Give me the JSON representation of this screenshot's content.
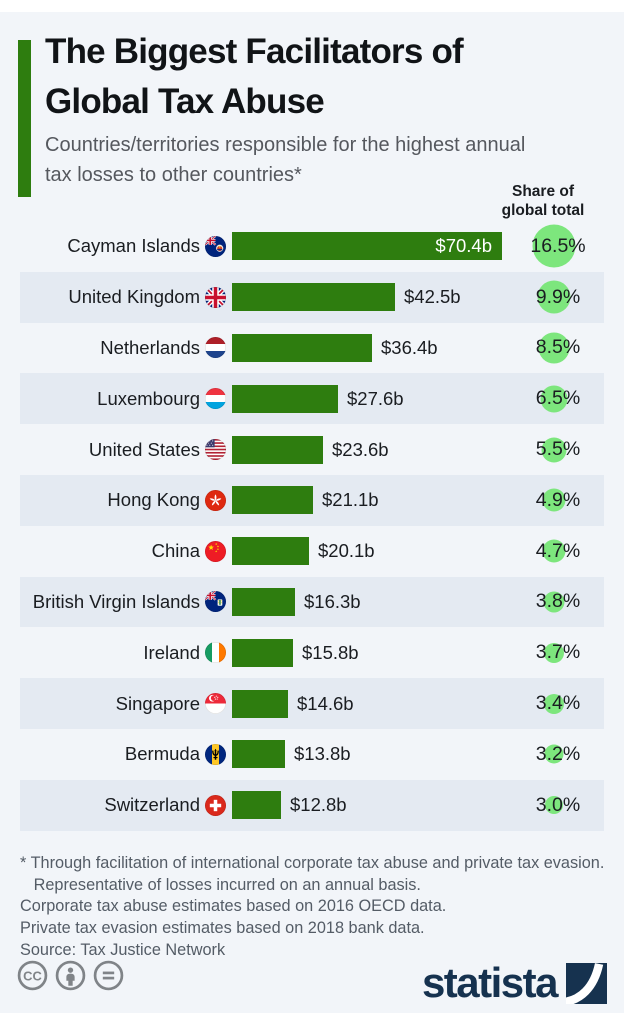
{
  "header": {
    "title": "The Biggest Facilitators of\nGlobal Tax Abuse",
    "subtitle": "Countries/territories responsible for the highest annual\ntax losses to other countries*",
    "share_column": "Share of\nglobal total"
  },
  "chart_data": {
    "type": "bar",
    "orientation": "horizontal",
    "title": "The Biggest Facilitators of Global Tax Abuse",
    "subtitle": "Countries/territories responsible for the highest annual tax losses to other countries*",
    "unit": "billions of US dollars (annual tax losses caused to other countries)",
    "categories": [
      "Cayman Islands",
      "United Kingdom",
      "Netherlands",
      "Luxembourg",
      "United States",
      "Hong Kong",
      "China",
      "British Virgin Islands",
      "Ireland",
      "Singapore",
      "Bermuda",
      "Switzerland"
    ],
    "series": [
      {
        "name": "Annual tax losses to other countries ($b)",
        "values": [
          70.4,
          42.5,
          36.4,
          27.6,
          23.6,
          21.1,
          20.1,
          16.3,
          15.8,
          14.6,
          13.8,
          12.8
        ],
        "labels": [
          "$70.4b",
          "$42.5b",
          "$36.4b",
          "$27.6b",
          "$23.6b",
          "$21.1b",
          "$20.1b",
          "$16.3b",
          "$15.8b",
          "$14.6b",
          "$13.8b",
          "$12.8b"
        ]
      },
      {
        "name": "Share of global total (%)",
        "values": [
          16.5,
          9.9,
          8.5,
          6.5,
          5.5,
          4.9,
          4.7,
          3.8,
          3.7,
          3.4,
          3.2,
          3.0
        ],
        "labels": [
          "16.5%",
          "9.9%",
          "8.5%",
          "6.5%",
          "5.5%",
          "4.9%",
          "4.7%",
          "3.8%",
          "3.7%",
          "3.4%",
          "3.2%",
          "3.0%"
        ]
      }
    ],
    "value_axis_max": 70.4,
    "grid": false,
    "legend": false,
    "bar_color": "#2e7d0f",
    "bubble_color": "#7de67d"
  },
  "rows": [
    {
      "country": "Cayman Islands",
      "flag": "cayman-islands",
      "value": 70.4,
      "value_label": "$70.4b",
      "value_inside": true,
      "share": 16.5,
      "share_label": "16.5%"
    },
    {
      "country": "United Kingdom",
      "flag": "united-kingdom",
      "value": 42.5,
      "value_label": "$42.5b",
      "value_inside": false,
      "share": 9.9,
      "share_label": "9.9%"
    },
    {
      "country": "Netherlands",
      "flag": "netherlands",
      "value": 36.4,
      "value_label": "$36.4b",
      "value_inside": false,
      "share": 8.5,
      "share_label": "8.5%"
    },
    {
      "country": "Luxembourg",
      "flag": "luxembourg",
      "value": 27.6,
      "value_label": "$27.6b",
      "value_inside": false,
      "share": 6.5,
      "share_label": "6.5%"
    },
    {
      "country": "United States",
      "flag": "united-states",
      "value": 23.6,
      "value_label": "$23.6b",
      "value_inside": false,
      "share": 5.5,
      "share_label": "5.5%"
    },
    {
      "country": "Hong Kong",
      "flag": "hong-kong",
      "value": 21.1,
      "value_label": "$21.1b",
      "value_inside": false,
      "share": 4.9,
      "share_label": "4.9%"
    },
    {
      "country": "China",
      "flag": "china",
      "value": 20.1,
      "value_label": "$20.1b",
      "value_inside": false,
      "share": 4.7,
      "share_label": "4.7%"
    },
    {
      "country": "British Virgin Islands",
      "flag": "british-virgin-islands",
      "value": 16.3,
      "value_label": "$16.3b",
      "value_inside": false,
      "share": 3.8,
      "share_label": "3.8%"
    },
    {
      "country": "Ireland",
      "flag": "ireland",
      "value": 15.8,
      "value_label": "$15.8b",
      "value_inside": false,
      "share": 3.7,
      "share_label": "3.7%"
    },
    {
      "country": "Singapore",
      "flag": "singapore",
      "value": 14.6,
      "value_label": "$14.6b",
      "value_inside": false,
      "share": 3.4,
      "share_label": "3.4%"
    },
    {
      "country": "Bermuda",
      "flag": "bermuda",
      "value": 13.8,
      "value_label": "$13.8b",
      "value_inside": false,
      "share": 3.2,
      "share_label": "3.2%"
    },
    {
      "country": "Switzerland",
      "flag": "switzerland",
      "value": 12.8,
      "value_label": "$12.8b",
      "value_inside": false,
      "share": 3.0,
      "share_label": "3.0%"
    }
  ],
  "footer": {
    "notes": "* Through facilitation of international corporate tax abuse and private tax evasion.\n   Representative of losses incurred on an annual basis.\nCorporate tax abuse estimates based on 2016 OECD data.\nPrivate tax evasion estimates based on 2018 bank data.",
    "source": "Source: Tax Justice Network",
    "license_icons": [
      "cc-icon",
      "attribution-icon",
      "no-derivatives-icon"
    ],
    "brand": "statista"
  },
  "colors": {
    "background": "#f2f5f9",
    "row_band": "#e4eaf2",
    "bar_green": "#2e7d0f",
    "bubble_green": "#7de67d",
    "accent_green": "#2e7d0f",
    "brand_navy": "#16324f",
    "text_dark": "#1a1d21",
    "text_gray": "#545c66"
  }
}
